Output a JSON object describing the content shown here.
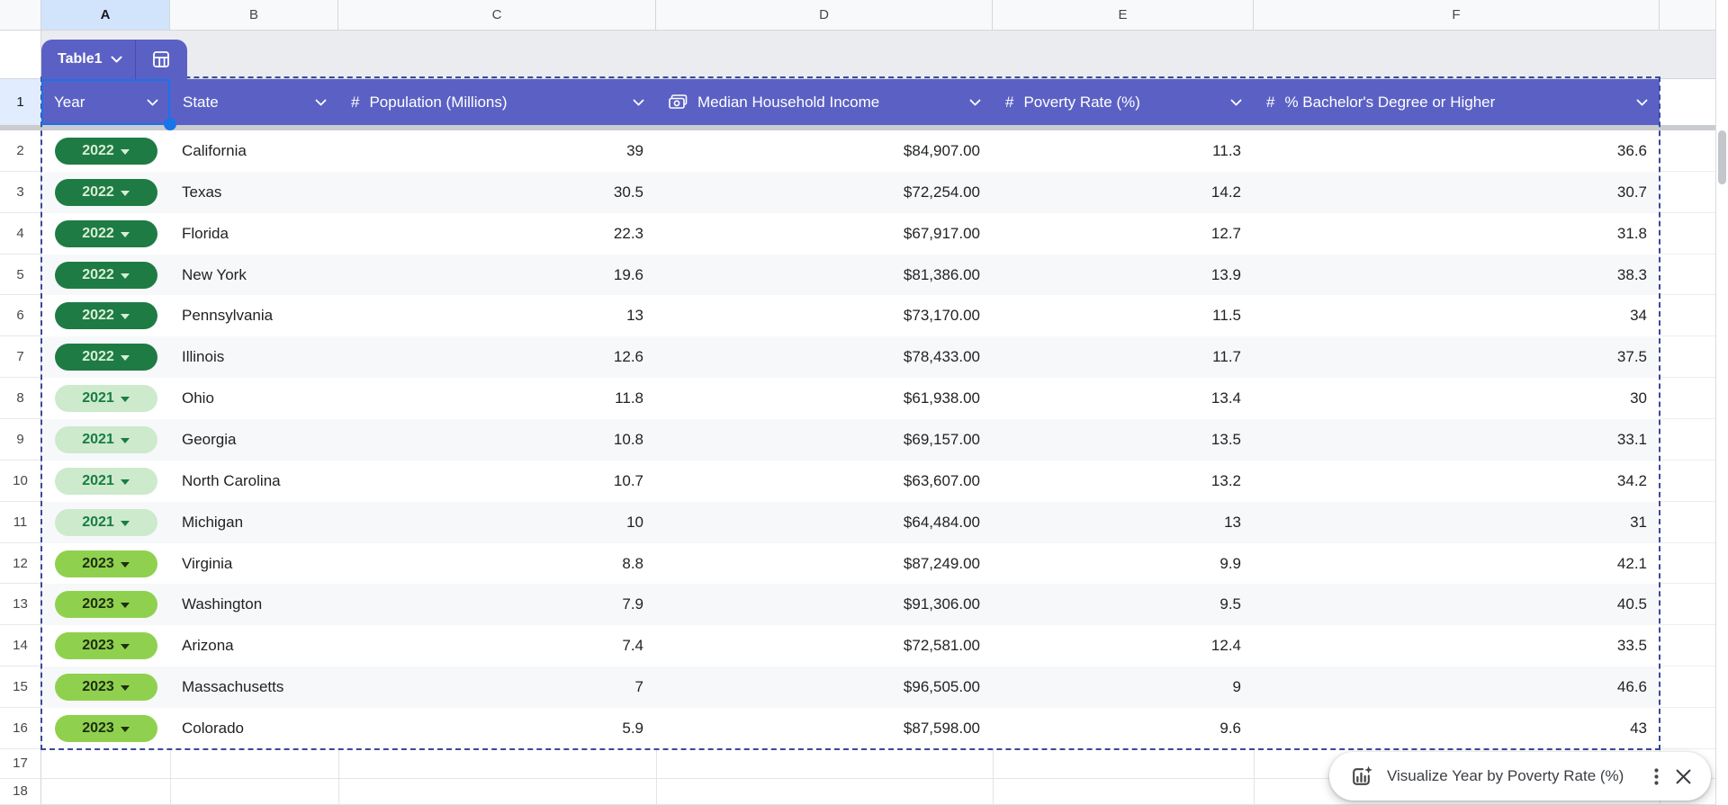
{
  "sheet": {
    "column_letters": [
      "A",
      "B",
      "C",
      "D",
      "E",
      "F"
    ],
    "selected_column": "A",
    "selected_row": "1",
    "row_numbers": [
      "1",
      "2",
      "3",
      "4",
      "5",
      "6",
      "7",
      "8",
      "9",
      "10",
      "11",
      "12",
      "13",
      "14",
      "15",
      "16",
      "17",
      "18"
    ]
  },
  "table_chip": {
    "label": "Table1"
  },
  "table": {
    "headers": [
      {
        "label": "Year",
        "icon": "none"
      },
      {
        "label": "State",
        "icon": "none"
      },
      {
        "label": "Population (Millions)",
        "icon": "number"
      },
      {
        "label": "Median Household Income",
        "icon": "currency"
      },
      {
        "label": "Poverty Rate (%)",
        "icon": "number"
      },
      {
        "label": "% Bachelor's Degree or Higher",
        "icon": "number"
      }
    ],
    "rows": [
      {
        "year": "2022",
        "state": "California",
        "population": "39",
        "income": "$84,907.00",
        "poverty": "11.3",
        "bachelors": "36.6"
      },
      {
        "year": "2022",
        "state": "Texas",
        "population": "30.5",
        "income": "$72,254.00",
        "poverty": "14.2",
        "bachelors": "30.7"
      },
      {
        "year": "2022",
        "state": "Florida",
        "population": "22.3",
        "income": "$67,917.00",
        "poverty": "12.7",
        "bachelors": "31.8"
      },
      {
        "year": "2022",
        "state": "New York",
        "population": "19.6",
        "income": "$81,386.00",
        "poverty": "13.9",
        "bachelors": "38.3"
      },
      {
        "year": "2022",
        "state": "Pennsylvania",
        "population": "13",
        "income": "$73,170.00",
        "poverty": "11.5",
        "bachelors": "34"
      },
      {
        "year": "2022",
        "state": "Illinois",
        "population": "12.6",
        "income": "$78,433.00",
        "poverty": "11.7",
        "bachelors": "37.5"
      },
      {
        "year": "2021",
        "state": "Ohio",
        "population": "11.8",
        "income": "$61,938.00",
        "poverty": "13.4",
        "bachelors": "30"
      },
      {
        "year": "2021",
        "state": "Georgia",
        "population": "10.8",
        "income": "$69,157.00",
        "poverty": "13.5",
        "bachelors": "33.1"
      },
      {
        "year": "2021",
        "state": "North Carolina",
        "population": "10.7",
        "income": "$63,607.00",
        "poverty": "13.2",
        "bachelors": "34.2"
      },
      {
        "year": "2021",
        "state": "Michigan",
        "population": "10",
        "income": "$64,484.00",
        "poverty": "13",
        "bachelors": "31"
      },
      {
        "year": "2023",
        "state": "Virginia",
        "population": "8.8",
        "income": "$87,249.00",
        "poverty": "9.9",
        "bachelors": "42.1"
      },
      {
        "year": "2023",
        "state": "Washington",
        "population": "7.9",
        "income": "$91,306.00",
        "poverty": "9.5",
        "bachelors": "40.5"
      },
      {
        "year": "2023",
        "state": "Arizona",
        "population": "7.4",
        "income": "$72,581.00",
        "poverty": "12.4",
        "bachelors": "33.5"
      },
      {
        "year": "2023",
        "state": "Massachusetts",
        "population": "7",
        "income": "$96,505.00",
        "poverty": "9",
        "bachelors": "46.6"
      },
      {
        "year": "2023",
        "state": "Colorado",
        "population": "5.9",
        "income": "$87,598.00",
        "poverty": "9.6",
        "bachelors": "43"
      }
    ]
  },
  "toast": {
    "label": "Visualize Year by Poverty Rate (%)"
  },
  "colors": {
    "header_bg": "#5b61c4",
    "selection_blue": "#1a73e8",
    "table_dash_border": "#3c4899",
    "stripe": "#f6f8fa",
    "year_chips": {
      "2022": {
        "bg": "#1e7b44",
        "fg": "#d9efd4"
      },
      "2021": {
        "bg": "#cdeacc",
        "fg": "#187d41"
      },
      "2023": {
        "bg": "#8fd14e",
        "fg": "#1f2d12"
      }
    }
  }
}
